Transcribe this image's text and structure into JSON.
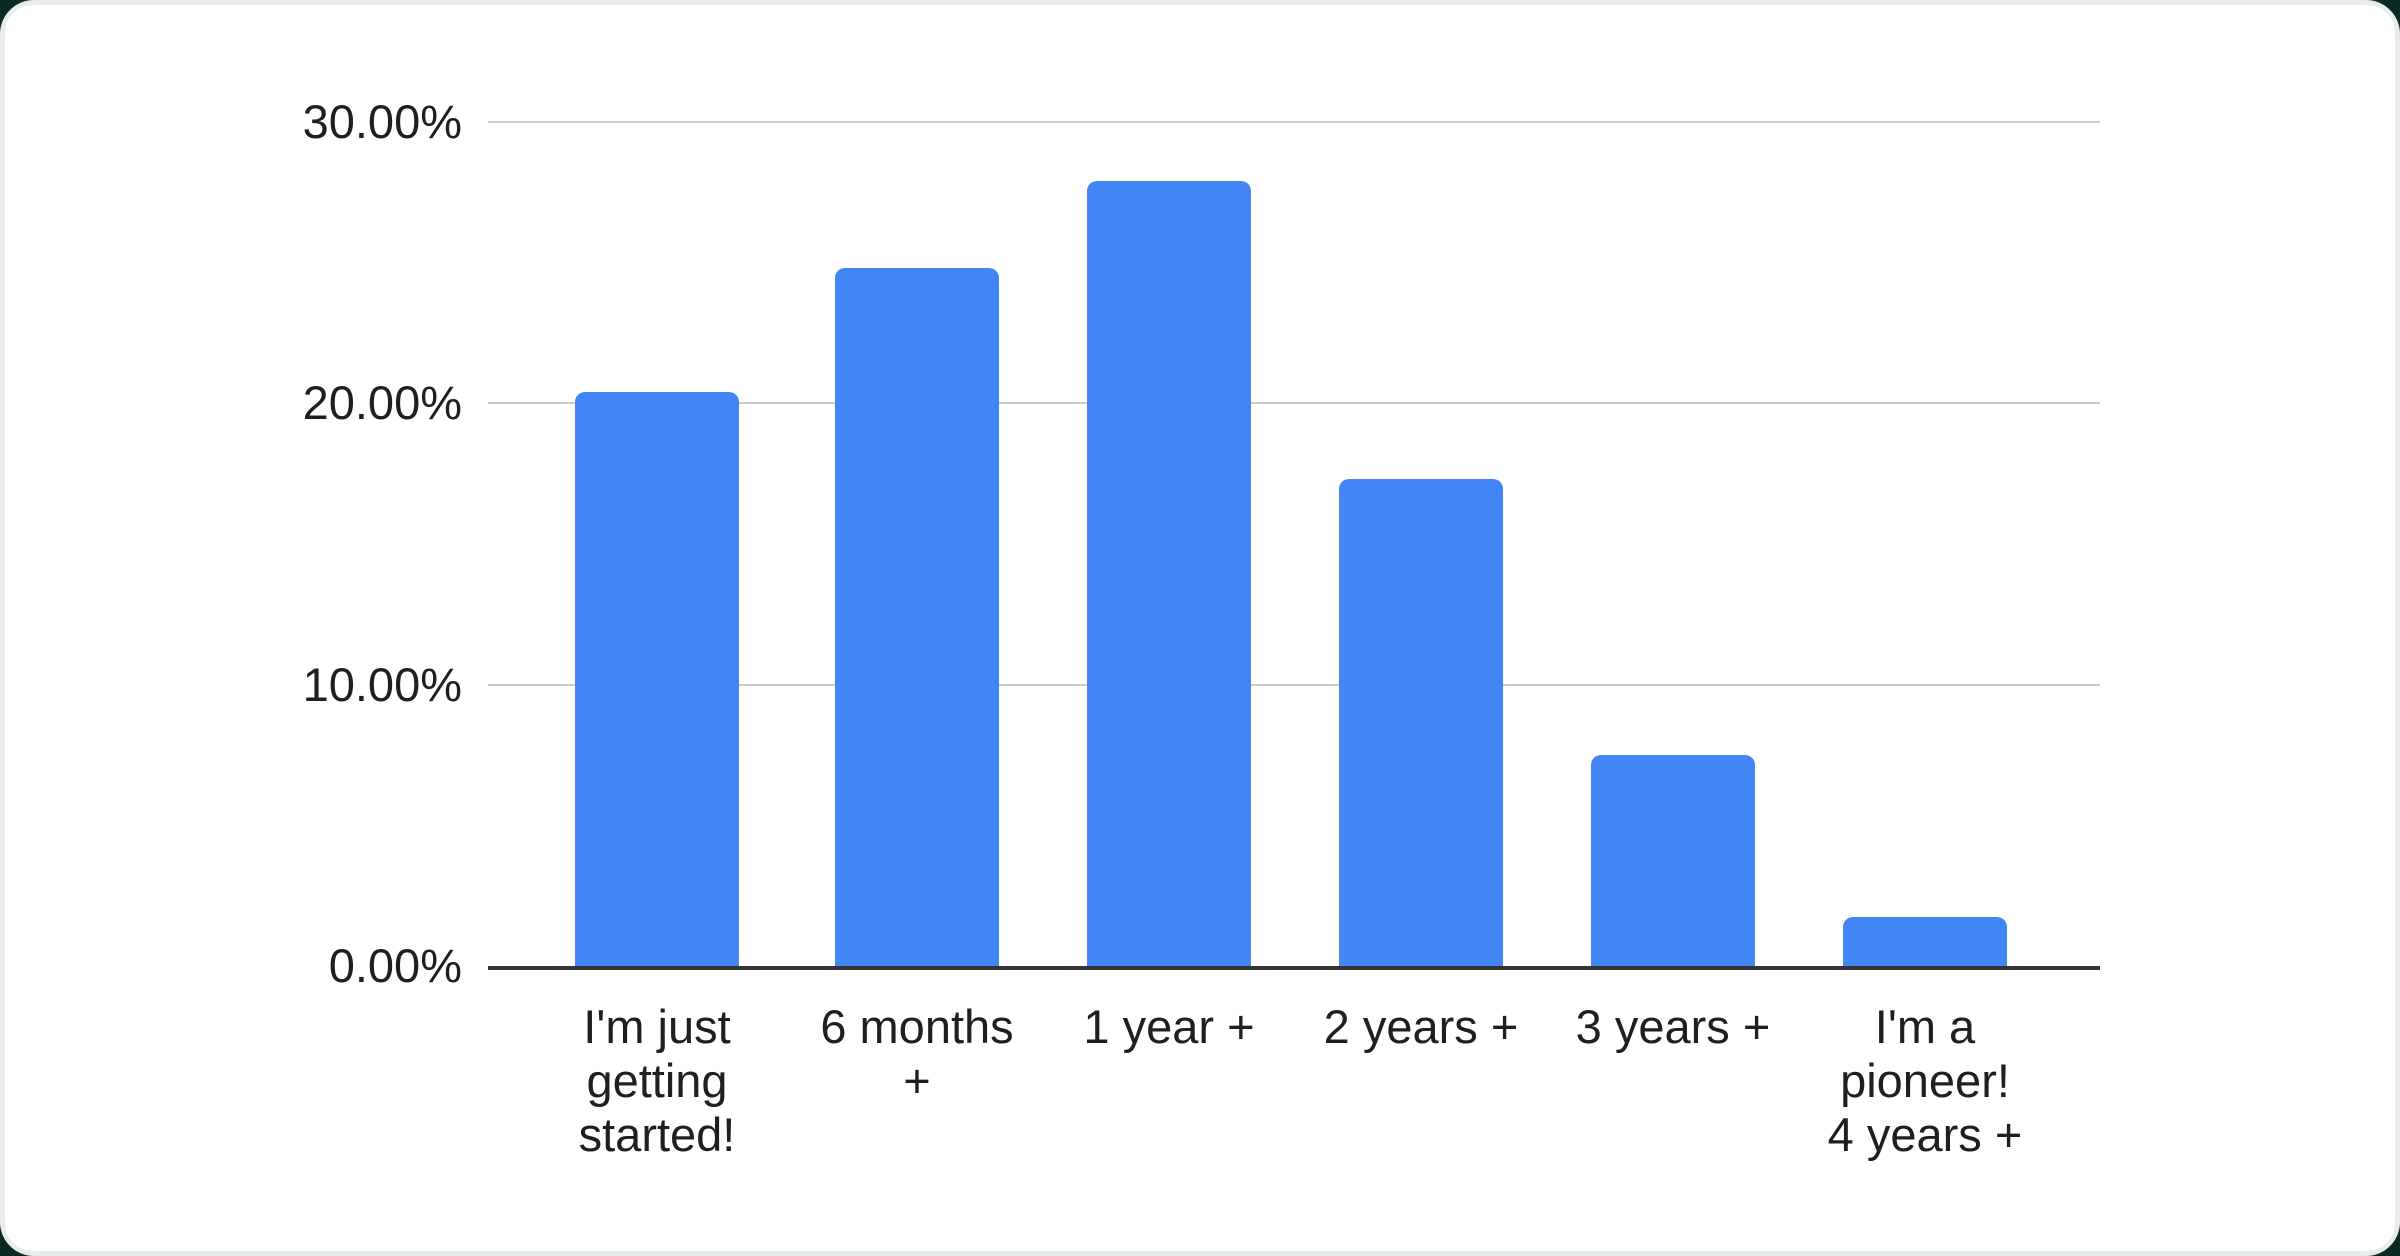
{
  "frame": {
    "outer_background": "#0c2a24",
    "rim_color": "#e8eceb",
    "card_color": "#ffffff"
  },
  "chart_data": {
    "type": "bar",
    "title": "",
    "categories": [
      "I'm just getting started!",
      "6 months +",
      "1 year +",
      "2 years +",
      "3 years +",
      "I'm a pioneer! 4 years +"
    ],
    "category_lines": [
      [
        "I'm just",
        "getting",
        "started!"
      ],
      [
        "6 months",
        "+"
      ],
      [
        "1 year +"
      ],
      [
        "2 years +"
      ],
      [
        "3 years +"
      ],
      [
        "I'm a",
        "pioneer!",
        "4 years +"
      ]
    ],
    "values": [
      20.4,
      24.8,
      27.9,
      17.3,
      7.5,
      1.75
    ],
    "unit": "%",
    "ylim": [
      0,
      30
    ],
    "yticks": [
      {
        "value": 30,
        "label": "30.00%"
      },
      {
        "value": 20,
        "label": "20.00%"
      },
      {
        "value": 10,
        "label": "10.00%"
      },
      {
        "value": 0,
        "label": "0.00%"
      }
    ],
    "grid": true,
    "legend_position": "none",
    "bar_color": "#4285F4",
    "gridline_color": "#cccccc",
    "axis_color": "#333333",
    "label_color": "#1f1f1f"
  }
}
